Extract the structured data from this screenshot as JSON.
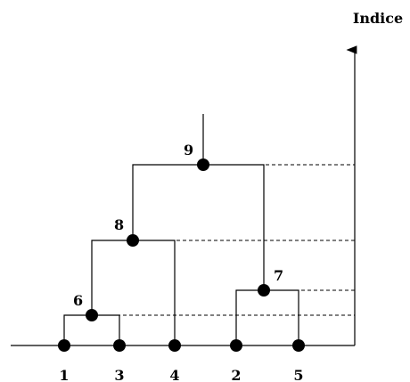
{
  "axis": {
    "label": "Indice"
  },
  "leaves": [
    {
      "id": "leaf-1",
      "label": "1"
    },
    {
      "id": "leaf-3",
      "label": "3"
    },
    {
      "id": "leaf-4",
      "label": "4"
    },
    {
      "id": "leaf-2",
      "label": "2"
    },
    {
      "id": "leaf-5",
      "label": "5"
    }
  ],
  "merges": [
    {
      "id": "node-6",
      "label": "6",
      "children": [
        "leaf-1",
        "leaf-3"
      ]
    },
    {
      "id": "node-7",
      "label": "7",
      "children": [
        "leaf-2",
        "leaf-5"
      ]
    },
    {
      "id": "node-8",
      "label": "8",
      "children": [
        "node-6",
        "leaf-4"
      ]
    },
    {
      "id": "node-9",
      "label": "9",
      "children": [
        "node-8",
        "node-7"
      ]
    }
  ],
  "colors": {
    "line": "#000000",
    "node": "#000000"
  }
}
